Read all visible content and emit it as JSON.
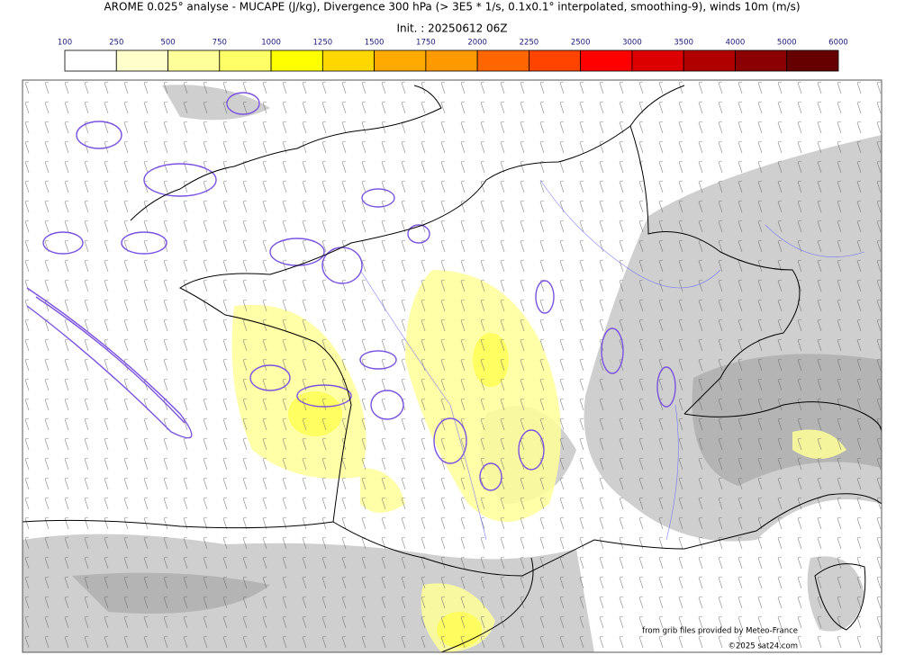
{
  "header": {
    "title": "AROME 0.025° analyse - MUCAPE (J/kg), Divergence 300 hPa (> 3E5 * 1/s, 0.1x0.1° interpolated, smoothing-9), winds 10m (m/s)",
    "init": "Init. : 20250612 06Z"
  },
  "colorbar": {
    "levels": [
      100,
      250,
      500,
      750,
      1000,
      1250,
      1500,
      1750,
      2000,
      2250,
      2500,
      3000,
      3500,
      4000,
      5000,
      6000
    ],
    "colors": [
      "#ffffff",
      "#ffffcc",
      "#ffff99",
      "#ffff66",
      "#ffff00",
      "#ffd700",
      "#ffaa00",
      "#ff9900",
      "#ff6600",
      "#ff4400",
      "#ff0000",
      "#dd0000",
      "#b00000",
      "#8b0000",
      "#660000"
    ]
  },
  "credits": {
    "source": "from grib files provided by Meteo-France",
    "site": "©2025 sat24.com"
  }
}
